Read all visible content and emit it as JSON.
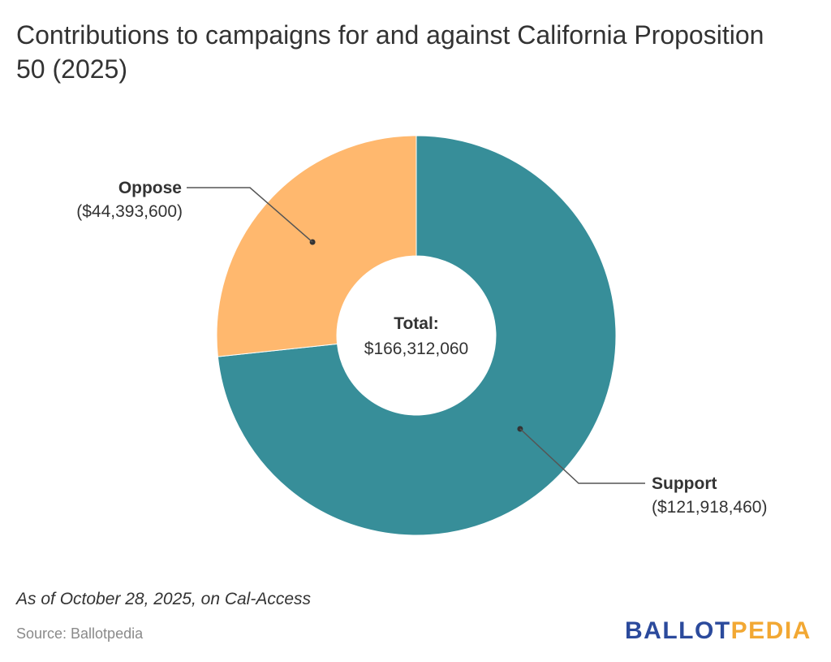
{
  "title": "Contributions to campaigns for and against California Proposition 50 (2025)",
  "footnote": "As of October 28, 2025, on Cal-Access",
  "source": "Source: Ballotpedia",
  "logo": {
    "part1": "BALLOT",
    "part2": "PEDIA",
    "color1": "#2b4a9c",
    "color2": "#f2a833"
  },
  "chart_data": {
    "type": "pie",
    "style": "donut",
    "title": "Contributions to campaigns for and against California Proposition 50 (2025)",
    "center_label": {
      "heading": "Total:",
      "value": "$166,312,060"
    },
    "slices": [
      {
        "label": "Support",
        "value": 121918460,
        "value_label": "($121,918,460)",
        "color": "#378e99"
      },
      {
        "label": "Oppose",
        "value": 44393600,
        "value_label": "($44,393,600)",
        "color": "#ffb86e"
      }
    ]
  }
}
